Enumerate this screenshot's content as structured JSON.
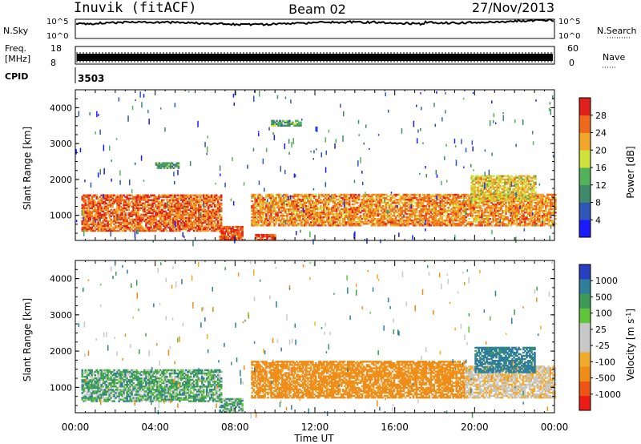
{
  "header": {
    "station": "Inuvik (fitACF)",
    "beam": "Beam 02",
    "date": "27/Nov/2013"
  },
  "summary": {
    "nsky_label": "N.Sky",
    "nsky_ticks": [
      "10^5",
      "10^0"
    ],
    "nsearch_label": "N.Search",
    "freq_label_1": "Freq.",
    "freq_label_2": "[MHz]",
    "freq_ticks": [
      "18",
      "8"
    ],
    "nave_label": "Nave",
    "nave_ticks": [
      "60",
      "0"
    ],
    "cpid_label": "CPID",
    "cpid_value": "3503"
  },
  "colors": {
    "power_scale": [
      "#1a1aff",
      "#2f55b8",
      "#3f8a68",
      "#52b25a",
      "#cde23a",
      "#f2a62a",
      "#ee6a1a",
      "#e0201a"
    ],
    "velocity_scale": [
      "#ee1a14",
      "#ee5414",
      "#f08c18",
      "#f2aa2c",
      "#c8c8c8",
      "#c8c8c8",
      "#5fc63b",
      "#3d9a58",
      "#2f7e9a",
      "#2840c0"
    ]
  },
  "chart_data": [
    {
      "type": "heatmap",
      "panel": "power",
      "ylabel": "Slant Range [km]",
      "yticks": [
        "1000",
        "2000",
        "3000",
        "4000"
      ],
      "ylim": [
        300,
        4500
      ],
      "xlim_hours": [
        0,
        24
      ],
      "colorbar": {
        "label": "Power [dB]",
        "ticks": [
          "4",
          "8",
          "12",
          "16",
          "20",
          "24",
          "28"
        ],
        "range": [
          0,
          32
        ]
      },
      "features": [
        {
          "time_hours": [
            0.3,
            7.3
          ],
          "range_km": [
            550,
            1550
          ],
          "description_value_db": 26
        },
        {
          "time_hours": [
            8.8,
            24.0
          ],
          "range_km": [
            700,
            1600
          ],
          "description_value_db": 24
        },
        {
          "time_hours": [
            7.2,
            8.4
          ],
          "range_km": [
            300,
            700
          ],
          "description_value_db": 28
        },
        {
          "time_hours": [
            9.0,
            10.0
          ],
          "range_km": [
            300,
            450
          ],
          "description_value_db": 28
        },
        {
          "time_hours": [
            19.8,
            23.0
          ],
          "range_km": [
            1400,
            2100
          ],
          "description_value_db": 20
        },
        {
          "time_hours": [
            4.0,
            5.2
          ],
          "range_km": [
            2300,
            2450
          ],
          "description_value_db": 12
        },
        {
          "time_hours": [
            9.8,
            11.3
          ],
          "range_km": [
            3480,
            3620
          ],
          "description_value_db": 12
        }
      ]
    },
    {
      "type": "heatmap",
      "panel": "velocity",
      "ylabel": "Slant Range [km]",
      "yticks": [
        "1000",
        "2000",
        "3000",
        "4000"
      ],
      "ylim": [
        300,
        4500
      ],
      "xlabel": "Time UT",
      "xticks": [
        "00:00",
        "04:00",
        "08:00",
        "12:00",
        "16:00",
        "20:00",
        "00:00"
      ],
      "xlim_hours": [
        0,
        24
      ],
      "colorbar": {
        "label": "Velocity [m s^-1]",
        "ticks": [
          "1000",
          "500",
          "100",
          "25",
          "-25",
          "-100",
          "-500",
          "-1000"
        ]
      },
      "features": [
        {
          "time_hours": [
            0.3,
            7.3
          ],
          "range_km": [
            600,
            1500
          ],
          "velocity_ms": 60
        },
        {
          "time_hours": [
            8.8,
            19.5
          ],
          "range_km": [
            700,
            1700
          ],
          "velocity_ms": -150
        },
        {
          "time_hours": [
            19.5,
            24.0
          ],
          "range_km": [
            700,
            1600
          ],
          "velocity_ms": -40
        },
        {
          "time_hours": [
            20.0,
            23.0
          ],
          "range_km": [
            1400,
            2100
          ],
          "velocity_ms": 150
        },
        {
          "time_hours": [
            7.2,
            8.4
          ],
          "range_km": [
            300,
            700
          ],
          "velocity_ms": 60
        }
      ]
    }
  ]
}
